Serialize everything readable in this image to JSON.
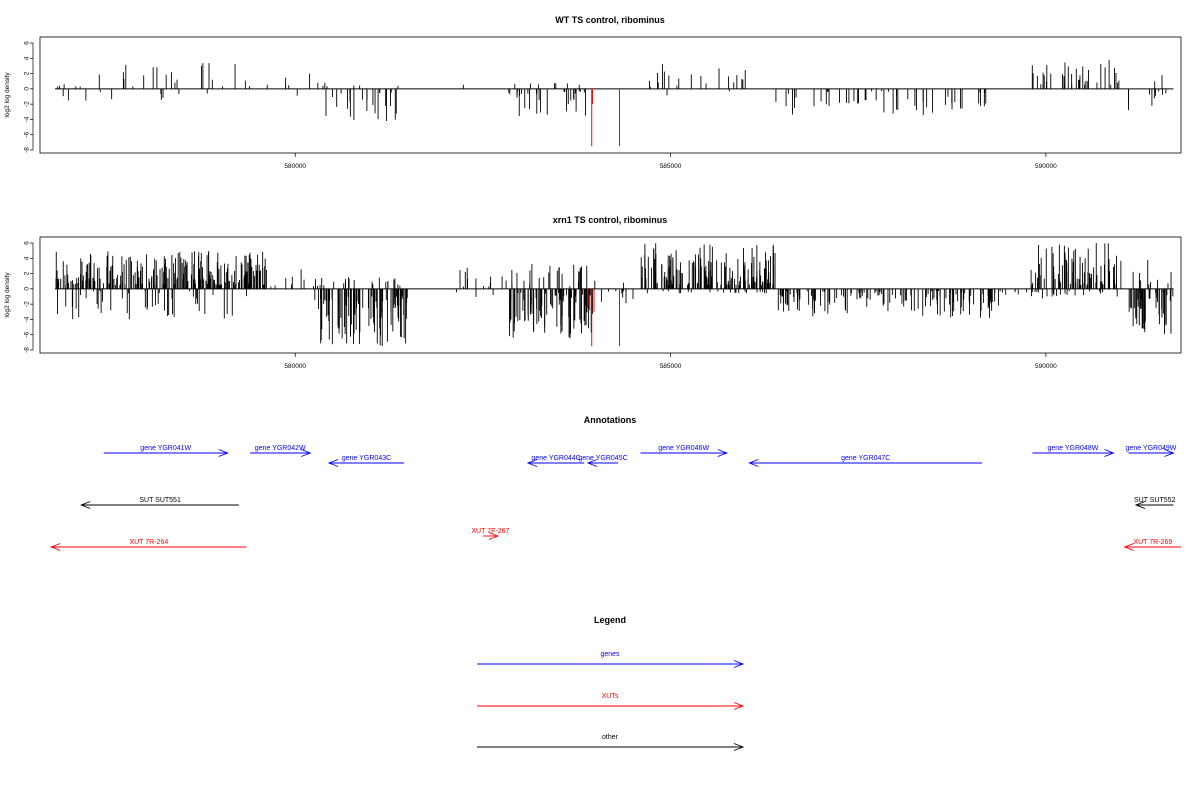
{
  "figure": {
    "panels": [
      {
        "title": "WT TS control, ribominus",
        "ylabel": "log2 log density"
      },
      {
        "title": "xrn1 TS control, ribominus",
        "ylabel": "log2 log density"
      }
    ],
    "annotations_title": "Annotations",
    "legend_title": "Legend"
  },
  "chart_data": [
    {
      "type": "bar",
      "title": "WT TS control, ribominus",
      "xlabel": "",
      "ylabel": "log2 log density",
      "xlim": [
        576600,
        591800
      ],
      "ylim": [
        -8,
        6
      ],
      "grid": false,
      "x_ticks": [
        580000,
        585000,
        590000
      ],
      "x_tick_labels": [
        "580000",
        "585000",
        "590000"
      ],
      "y_ticks": [
        -8,
        -6,
        -4,
        -2,
        0,
        2,
        4,
        6
      ],
      "y_tick_labels": [
        "-8",
        "-6",
        "-4",
        "-2",
        "0",
        "2",
        "4",
        "6"
      ],
      "baseline": {
        "from": 576800,
        "to": 591700,
        "y": 0
      },
      "regions": [
        {
          "from": 576800,
          "to": 579400,
          "density": 0.4,
          "sign": 1,
          "min": 0.3,
          "max": 3.7,
          "neg_min": 0.3,
          "neg_max": 1.6
        },
        {
          "from": 579400,
          "to": 580400,
          "density": 0.22,
          "sign": 1,
          "min": 0.3,
          "max": 2.5,
          "neg_min": 0.5,
          "neg_max": 2.4
        },
        {
          "from": 580300,
          "to": 581400,
          "density": 0.8,
          "sign": -1,
          "min": 0.5,
          "max": 4.5,
          "neg_min": 0.3,
          "neg_max": 1.0
        },
        {
          "from": 582200,
          "to": 582300,
          "density": 0.3,
          "sign": 1,
          "min": 0.5,
          "max": 1.0,
          "neg_min": 0.0,
          "neg_max": 0.0
        },
        {
          "from": 582800,
          "to": 584000,
          "density": 0.95,
          "sign": -1,
          "min": 0.3,
          "max": 3.8,
          "neg_min": 0.3,
          "neg_max": 0.8
        },
        {
          "from": 584600,
          "to": 586000,
          "density": 0.45,
          "sign": 1,
          "min": 0.3,
          "max": 3.8,
          "neg_min": 0.3,
          "neg_max": 0.9
        },
        {
          "from": 586400,
          "to": 589500,
          "density": 0.55,
          "sign": -1,
          "min": 0.3,
          "max": 3.5,
          "neg_min": 0.0,
          "neg_max": 0.0
        },
        {
          "from": 589800,
          "to": 591000,
          "density": 0.9,
          "sign": 1,
          "min": 0.5,
          "max": 3.8,
          "neg_min": 0.3,
          "neg_max": 1.0
        },
        {
          "from": 591100,
          "to": 591600,
          "density": 0.7,
          "sign": -1,
          "min": 0.3,
          "max": 2.8,
          "neg_min": 0.5,
          "neg_max": 2.0
        }
      ],
      "highlight_series": {
        "color": "#ff0000",
        "points": [
          {
            "x": 583950,
            "y": -7.5
          },
          {
            "x": 584320,
            "y": -7.5
          },
          {
            "x": 583960,
            "y": -2.0
          }
        ]
      }
    },
    {
      "type": "bar",
      "title": "xrn1 TS control, ribominus",
      "xlabel": "",
      "ylabel": "log2 log density",
      "xlim": [
        576600,
        591800
      ],
      "ylim": [
        -8,
        6
      ],
      "grid": false,
      "x_ticks": [
        580000,
        585000,
        590000
      ],
      "x_tick_labels": [
        "580000",
        "585000",
        "590000"
      ],
      "y_ticks": [
        -8,
        -6,
        -4,
        -2,
        0,
        2,
        4,
        6
      ],
      "y_tick_labels": [
        "-8",
        "-6",
        "-4",
        "-2",
        "0",
        "2",
        "4",
        "6"
      ],
      "baseline": {
        "from": 576800,
        "to": 591700,
        "y": 0
      },
      "regions": [
        {
          "from": 576800,
          "to": 579600,
          "density": 3.0,
          "sign": 1,
          "min": 0.5,
          "max": 5.0,
          "neg_min": 0.3,
          "neg_max": 4.0
        },
        {
          "from": 579600,
          "to": 580300,
          "density": 0.5,
          "sign": 1,
          "min": 0.3,
          "max": 3.0,
          "neg_min": 0.3,
          "neg_max": 2.0
        },
        {
          "from": 580300,
          "to": 581500,
          "density": 3.0,
          "sign": -1,
          "min": 1.0,
          "max": 7.5,
          "neg_min": 0.3,
          "neg_max": 1.5
        },
        {
          "from": 582100,
          "to": 582800,
          "density": 0.6,
          "sign": 1,
          "min": 0.3,
          "max": 3.0,
          "neg_min": 0.3,
          "neg_max": 1.5
        },
        {
          "from": 582800,
          "to": 584000,
          "density": 3.0,
          "sign": -1,
          "min": 0.5,
          "max": 6.5,
          "neg_min": 0.3,
          "neg_max": 3.5
        },
        {
          "from": 584000,
          "to": 584500,
          "density": 0.6,
          "sign": -1,
          "min": 0.3,
          "max": 2.0,
          "neg_min": 0.3,
          "neg_max": 1.0
        },
        {
          "from": 584600,
          "to": 586400,
          "density": 3.0,
          "sign": 1,
          "min": 0.5,
          "max": 6.0,
          "neg_min": 0.3,
          "neg_max": 0.6
        },
        {
          "from": 586400,
          "to": 589500,
          "density": 1.6,
          "sign": -1,
          "min": 0.3,
          "max": 3.8,
          "neg_min": 0.0,
          "neg_max": 0.0
        },
        {
          "from": 589500,
          "to": 590200,
          "density": 0.4,
          "sign": -1,
          "min": 0.3,
          "max": 1.5,
          "neg_min": 0.3,
          "neg_max": 0.8
        },
        {
          "from": 589800,
          "to": 591000,
          "density": 2.4,
          "sign": 1,
          "min": 0.5,
          "max": 6.0,
          "neg_min": 0.3,
          "neg_max": 1.0
        },
        {
          "from": 591100,
          "to": 591700,
          "density": 3.0,
          "sign": -1,
          "min": 0.5,
          "max": 6.0,
          "neg_min": 0.3,
          "neg_max": 4.0
        }
      ],
      "highlight_series": {
        "color": "#ff0000",
        "points": [
          {
            "x": 583950,
            "y": -7.5
          },
          {
            "x": 584320,
            "y": -7.5
          },
          {
            "x": 583900,
            "y": -2.5
          },
          {
            "x": 583980,
            "y": -3.0
          }
        ]
      }
    }
  ],
  "annotations": {
    "xlim": [
      576600,
      591800
    ],
    "items": [
      {
        "label": "gene YGR041W",
        "kind": "gene",
        "color": "#0000ff",
        "from": 577450,
        "to": 579100,
        "strand": "+",
        "row": 0
      },
      {
        "label": "gene YGR042W",
        "kind": "gene",
        "color": "#0000ff",
        "from": 579400,
        "to": 580200,
        "strand": "+",
        "row": 0
      },
      {
        "label": "gene YGR043C",
        "kind": "gene",
        "color": "#0000ff",
        "from": 580450,
        "to": 581450,
        "strand": "-",
        "row": 1
      },
      {
        "label": "gene YGR044C",
        "kind": "gene",
        "color": "#0000ff",
        "from": 583100,
        "to": 583850,
        "strand": "-",
        "row": 1
      },
      {
        "label": "gene YGR045C",
        "kind": "gene",
        "color": "#0000ff",
        "from": 583900,
        "to": 584300,
        "strand": "-",
        "row": 1
      },
      {
        "label": "gene YGR046W",
        "kind": "gene",
        "color": "#0000ff",
        "from": 584600,
        "to": 585750,
        "strand": "+",
        "row": 0
      },
      {
        "label": "gene YGR047C",
        "kind": "gene",
        "color": "#0000ff",
        "from": 586050,
        "to": 589150,
        "strand": "-",
        "row": 1
      },
      {
        "label": "gene YGR048W",
        "kind": "gene",
        "color": "#0000ff",
        "from": 589820,
        "to": 590900,
        "strand": "+",
        "row": 0
      },
      {
        "label": "gene YGR049W",
        "kind": "gene",
        "color": "#0000ff",
        "from": 591100,
        "to": 591700,
        "strand": "+",
        "row": 0
      },
      {
        "label": "SUT SUT551",
        "kind": "other",
        "color": "#000000",
        "from": 577150,
        "to": 579250,
        "strand": "-",
        "row": 2
      },
      {
        "label": "SUT SUT552",
        "kind": "other",
        "color": "#000000",
        "from": 591200,
        "to": 591700,
        "strand": "-",
        "row": 2
      },
      {
        "label": "XUT 7F-267",
        "kind": "xut",
        "color": "#ff0000",
        "from": 582500,
        "to": 582700,
        "strand": "+",
        "row": 3
      },
      {
        "label": "XUT 7R-264",
        "kind": "xut",
        "color": "#ff0000",
        "from": 576750,
        "to": 579350,
        "strand": "-",
        "row": 4
      },
      {
        "label": "XUT 7R-269",
        "kind": "xut",
        "color": "#ff0000",
        "from": 591050,
        "to": 591800,
        "strand": "-",
        "row": 4
      }
    ]
  },
  "legend": {
    "items": [
      {
        "label": "genes",
        "color": "#0000ff",
        "kind": "gene"
      },
      {
        "label": "XUTs",
        "color": "#ff0000",
        "kind": "xut"
      },
      {
        "label": "other",
        "color": "#000000",
        "kind": "other"
      }
    ]
  }
}
